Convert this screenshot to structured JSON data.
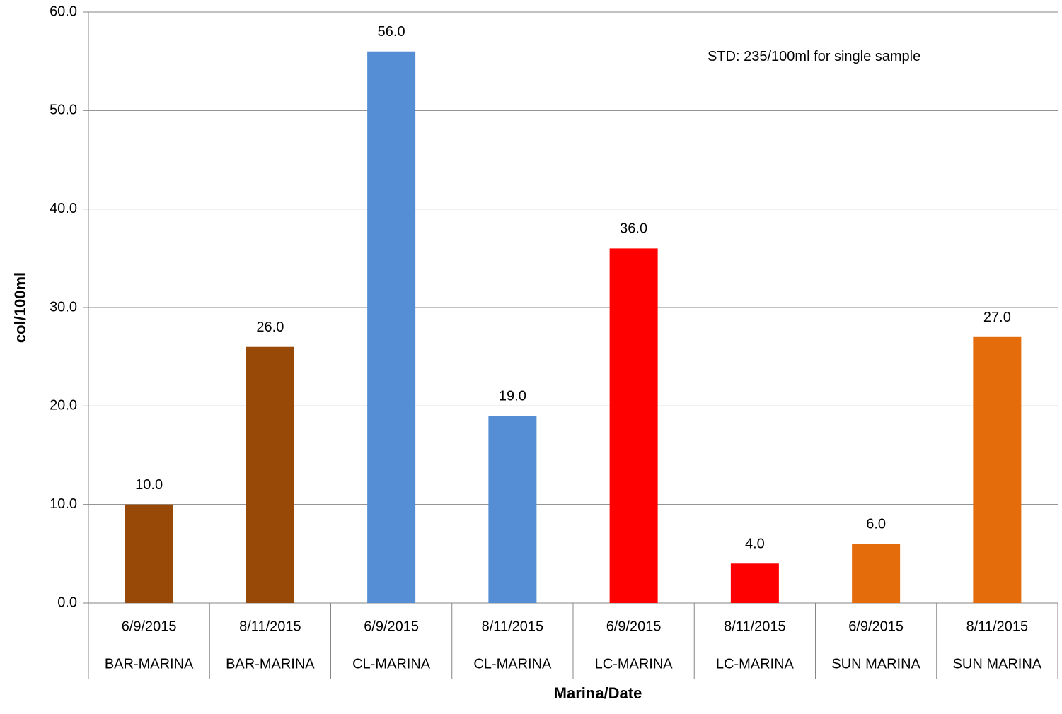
{
  "chart_data": {
    "type": "bar",
    "x_label": "Marina/Date",
    "y_label": "col/100ml",
    "annotation": "STD: 235/100ml for single sample",
    "categories": [
      "6/9/2015",
      "8/11/2015",
      "6/9/2015",
      "8/11/2015",
      "6/9/2015",
      "8/11/2015",
      "6/9/2015",
      "8/11/2015"
    ],
    "groups": [
      "BAR-MARINA",
      "BAR-MARINA",
      "CL-MARINA",
      "CL-MARINA",
      "LC-MARINA",
      "LC-MARINA",
      "SUN MARINA",
      "SUN MARINA"
    ],
    "values": [
      10,
      26,
      56,
      19,
      36,
      4,
      6,
      27
    ],
    "value_labels": [
      "10.0",
      "26.0",
      "56.0",
      "19.0",
      "36.0",
      "4.0",
      "6.0",
      "27.0"
    ],
    "colors": [
      "#984807",
      "#984807",
      "#558ed5",
      "#558ed5",
      "#ff0000",
      "#ff0000",
      "#e46c0a",
      "#e46c0a"
    ],
    "ylim": [
      0,
      60
    ],
    "yticks": [
      {
        "value": 0,
        "label": "0.0"
      },
      {
        "value": 10,
        "label": "10.0"
      },
      {
        "value": 20,
        "label": "20.0"
      },
      {
        "value": 30,
        "label": "30.0"
      },
      {
        "value": 40,
        "label": "40.0"
      },
      {
        "value": 50,
        "label": "50.0"
      },
      {
        "value": 60,
        "label": "60.0"
      }
    ],
    "grid": true
  }
}
